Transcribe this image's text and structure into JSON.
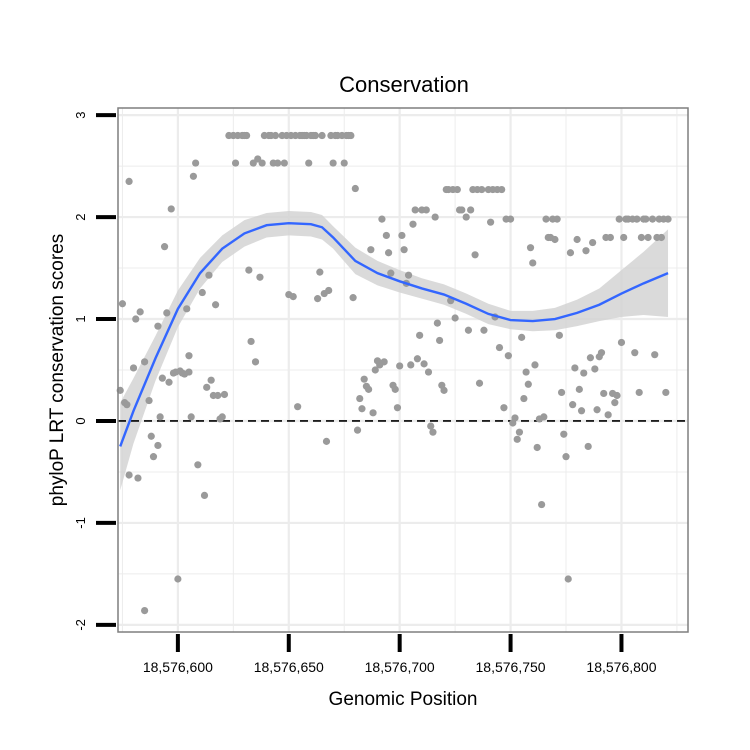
{
  "chart_data": {
    "type": "scatter",
    "title": "Conservation",
    "xlabel": "Genomic Position",
    "ylabel": "phyloP LRT conservation scores",
    "xlim": [
      18576573,
      18576830
    ],
    "ylim": [
      -2.07,
      3.07
    ],
    "x_ticks": [
      {
        "value": 18576600,
        "label": "18,576,600"
      },
      {
        "value": 18576650,
        "label": "18,576,650"
      },
      {
        "value": 18576700,
        "label": "18,576,700"
      },
      {
        "value": 18576750,
        "label": "18,576,750"
      },
      {
        "value": 18576800,
        "label": "18,576,800"
      }
    ],
    "y_ticks": [
      {
        "value": -2,
        "label": "-2"
      },
      {
        "value": -1,
        "label": "-1"
      },
      {
        "value": 0,
        "label": "0"
      },
      {
        "value": 1,
        "label": "1"
      },
      {
        "value": 2,
        "label": "2"
      },
      {
        "value": 3,
        "label": "3"
      }
    ],
    "grid": true,
    "reference_line": {
      "y": 0,
      "style": "dashed"
    },
    "colors": {
      "points": "#9a9a9a",
      "smooth_line": "#3366ff",
      "ribbon": "#d3d3d3",
      "panel": "#ffffff",
      "grid": "#ececec",
      "border": "#7f7f7f"
    },
    "series": [
      {
        "name": "scores",
        "points": [
          [
            18576574,
            0.3
          ],
          [
            18576575,
            1.15
          ],
          [
            18576576,
            0.18
          ],
          [
            18576577,
            0.16
          ],
          [
            18576578,
            2.35
          ],
          [
            18576578,
            -0.53
          ],
          [
            18576580,
            0.52
          ],
          [
            18576581,
            1.0
          ],
          [
            18576582,
            -0.56
          ],
          [
            18576583,
            1.07
          ],
          [
            18576585,
            -1.86
          ],
          [
            18576585,
            0.58
          ],
          [
            18576587,
            0.2
          ],
          [
            18576588,
            -0.15
          ],
          [
            18576589,
            -0.35
          ],
          [
            18576591,
            0.93
          ],
          [
            18576591,
            -0.24
          ],
          [
            18576592,
            0.04
          ],
          [
            18576593,
            0.42
          ],
          [
            18576594,
            1.71
          ],
          [
            18576595,
            1.06
          ],
          [
            18576596,
            0.38
          ],
          [
            18576597,
            2.08
          ],
          [
            18576598,
            0.47
          ],
          [
            18576599,
            0.48
          ],
          [
            18576600,
            -1.55
          ],
          [
            18576601,
            0.49
          ],
          [
            18576602,
            0.47
          ],
          [
            18576603,
            0.46
          ],
          [
            18576604,
            1.1
          ],
          [
            18576605,
            0.48
          ],
          [
            18576605,
            0.64
          ],
          [
            18576606,
            0.04
          ],
          [
            18576607,
            2.4
          ],
          [
            18576608,
            2.53
          ],
          [
            18576609,
            -0.43
          ],
          [
            18576611,
            1.26
          ],
          [
            18576612,
            -0.73
          ],
          [
            18576613,
            0.33
          ],
          [
            18576614,
            1.43
          ],
          [
            18576615,
            0.4
          ],
          [
            18576616,
            0.25
          ],
          [
            18576617,
            1.14
          ],
          [
            18576618,
            0.25
          ],
          [
            18576619,
            0.02
          ],
          [
            18576620,
            0.04
          ],
          [
            18576621,
            0.26
          ],
          [
            18576623,
            2.8
          ],
          [
            18576625,
            2.8
          ],
          [
            18576626,
            2.53
          ],
          [
            18576627,
            2.8
          ],
          [
            18576629,
            2.8
          ],
          [
            18576630,
            2.8
          ],
          [
            18576631,
            2.8
          ],
          [
            18576632,
            1.48
          ],
          [
            18576633,
            0.78
          ],
          [
            18576634,
            2.53
          ],
          [
            18576635,
            0.58
          ],
          [
            18576636,
            2.57
          ],
          [
            18576637,
            1.41
          ],
          [
            18576638,
            2.53
          ],
          [
            18576639,
            2.8
          ],
          [
            18576641,
            2.8
          ],
          [
            18576642,
            2.8
          ],
          [
            18576643,
            2.53
          ],
          [
            18576644,
            2.8
          ],
          [
            18576645,
            2.53
          ],
          [
            18576647,
            2.8
          ],
          [
            18576648,
            2.53
          ],
          [
            18576649,
            2.8
          ],
          [
            18576650,
            1.24
          ],
          [
            18576651,
            2.8
          ],
          [
            18576652,
            1.22
          ],
          [
            18576653,
            2.8
          ],
          [
            18576654,
            0.14
          ],
          [
            18576655,
            2.8
          ],
          [
            18576656,
            2.8
          ],
          [
            18576657,
            2.8
          ],
          [
            18576658,
            2.8
          ],
          [
            18576659,
            2.53
          ],
          [
            18576660,
            2.8
          ],
          [
            18576661,
            2.8
          ],
          [
            18576662,
            2.8
          ],
          [
            18576663,
            1.2
          ],
          [
            18576664,
            1.46
          ],
          [
            18576665,
            2.8
          ],
          [
            18576666,
            1.25
          ],
          [
            18576667,
            -0.2
          ],
          [
            18576668,
            1.28
          ],
          [
            18576669,
            2.8
          ],
          [
            18576670,
            2.53
          ],
          [
            18576671,
            2.8
          ],
          [
            18576672,
            2.8
          ],
          [
            18576674,
            2.8
          ],
          [
            18576675,
            2.53
          ],
          [
            18576676,
            2.8
          ],
          [
            18576677,
            2.8
          ],
          [
            18576678,
            2.8
          ],
          [
            18576679,
            1.21
          ],
          [
            18576680,
            2.28
          ],
          [
            18576681,
            -0.09
          ],
          [
            18576682,
            0.22
          ],
          [
            18576683,
            0.12
          ],
          [
            18576684,
            0.41
          ],
          [
            18576685,
            0.34
          ],
          [
            18576686,
            0.31
          ],
          [
            18576687,
            1.68
          ],
          [
            18576688,
            0.08
          ],
          [
            18576689,
            0.5
          ],
          [
            18576690,
            0.59
          ],
          [
            18576691,
            0.55
          ],
          [
            18576692,
            1.98
          ],
          [
            18576693,
            0.58
          ],
          [
            18576694,
            1.82
          ],
          [
            18576695,
            1.65
          ],
          [
            18576696,
            1.45
          ],
          [
            18576697,
            0.35
          ],
          [
            18576698,
            0.31
          ],
          [
            18576699,
            0.13
          ],
          [
            18576700,
            0.54
          ],
          [
            18576701,
            1.82
          ],
          [
            18576702,
            1.68
          ],
          [
            18576703,
            1.35
          ],
          [
            18576704,
            1.43
          ],
          [
            18576705,
            0.55
          ],
          [
            18576706,
            1.93
          ],
          [
            18576707,
            2.07
          ],
          [
            18576708,
            0.61
          ],
          [
            18576709,
            0.84
          ],
          [
            18576710,
            2.07
          ],
          [
            18576711,
            0.56
          ],
          [
            18576712,
            2.07
          ],
          [
            18576713,
            0.48
          ],
          [
            18576714,
            -0.05
          ],
          [
            18576715,
            -0.11
          ],
          [
            18576716,
            2.0
          ],
          [
            18576717,
            0.96
          ],
          [
            18576718,
            0.79
          ],
          [
            18576719,
            0.35
          ],
          [
            18576720,
            0.3
          ],
          [
            18576721,
            2.27
          ],
          [
            18576722,
            2.27
          ],
          [
            18576723,
            1.18
          ],
          [
            18576724,
            2.27
          ],
          [
            18576725,
            1.01
          ],
          [
            18576726,
            2.27
          ],
          [
            18576727,
            2.07
          ],
          [
            18576728,
            2.07
          ],
          [
            18576730,
            2.0
          ],
          [
            18576731,
            0.89
          ],
          [
            18576732,
            2.07
          ],
          [
            18576733,
            2.27
          ],
          [
            18576734,
            1.63
          ],
          [
            18576735,
            2.27
          ],
          [
            18576736,
            0.37
          ],
          [
            18576737,
            2.27
          ],
          [
            18576738,
            0.89
          ],
          [
            18576740,
            2.27
          ],
          [
            18576741,
            1.95
          ],
          [
            18576742,
            2.27
          ],
          [
            18576743,
            1.02
          ],
          [
            18576744,
            2.27
          ],
          [
            18576745,
            0.72
          ],
          [
            18576746,
            2.27
          ],
          [
            18576747,
            0.13
          ],
          [
            18576748,
            1.98
          ],
          [
            18576749,
            0.64
          ],
          [
            18576750,
            1.98
          ],
          [
            18576751,
            -0.02
          ],
          [
            18576752,
            0.03
          ],
          [
            18576753,
            -0.18
          ],
          [
            18576754,
            -0.11
          ],
          [
            18576755,
            0.82
          ],
          [
            18576756,
            0.22
          ],
          [
            18576757,
            0.48
          ],
          [
            18576758,
            0.36
          ],
          [
            18576759,
            1.7
          ],
          [
            18576760,
            1.55
          ],
          [
            18576761,
            0.55
          ],
          [
            18576762,
            -0.26
          ],
          [
            18576763,
            0.02
          ],
          [
            18576764,
            -0.82
          ],
          [
            18576765,
            0.04
          ],
          [
            18576766,
            1.98
          ],
          [
            18576767,
            1.8
          ],
          [
            18576768,
            1.8
          ],
          [
            18576769,
            1.98
          ],
          [
            18576770,
            1.78
          ],
          [
            18576771,
            1.98
          ],
          [
            18576772,
            0.84
          ],
          [
            18576773,
            0.28
          ],
          [
            18576774,
            -0.13
          ],
          [
            18576775,
            -0.35
          ],
          [
            18576776,
            -1.55
          ],
          [
            18576777,
            1.65
          ],
          [
            18576778,
            0.16
          ],
          [
            18576779,
            0.52
          ],
          [
            18576780,
            1.78
          ],
          [
            18576781,
            0.31
          ],
          [
            18576782,
            0.1
          ],
          [
            18576783,
            0.47
          ],
          [
            18576784,
            1.67
          ],
          [
            18576785,
            -0.25
          ],
          [
            18576786,
            0.62
          ],
          [
            18576787,
            1.75
          ],
          [
            18576788,
            0.51
          ],
          [
            18576789,
            0.11
          ],
          [
            18576790,
            0.63
          ],
          [
            18576791,
            0.67
          ],
          [
            18576792,
            0.27
          ],
          [
            18576793,
            1.8
          ],
          [
            18576794,
            0.06
          ],
          [
            18576795,
            1.8
          ],
          [
            18576796,
            0.27
          ],
          [
            18576797,
            0.18
          ],
          [
            18576798,
            0.25
          ],
          [
            18576799,
            1.98
          ],
          [
            18576800,
            0.77
          ],
          [
            18576801,
            1.8
          ],
          [
            18576802,
            1.98
          ],
          [
            18576803,
            1.98
          ],
          [
            18576805,
            1.98
          ],
          [
            18576806,
            0.67
          ],
          [
            18576807,
            1.98
          ],
          [
            18576808,
            0.28
          ],
          [
            18576809,
            1.8
          ],
          [
            18576810,
            1.98
          ],
          [
            18576811,
            1.98
          ],
          [
            18576812,
            1.8
          ],
          [
            18576814,
            1.98
          ],
          [
            18576815,
            0.65
          ],
          [
            18576816,
            1.8
          ],
          [
            18576817,
            1.98
          ],
          [
            18576818,
            1.8
          ],
          [
            18576819,
            1.98
          ],
          [
            18576820,
            0.28
          ],
          [
            18576821,
            1.98
          ]
        ]
      },
      {
        "name": "loess smooth",
        "points": [
          [
            18576574,
            -0.25
          ],
          [
            18576580,
            0.1
          ],
          [
            18576590,
            0.62
          ],
          [
            18576600,
            1.1
          ],
          [
            18576610,
            1.45
          ],
          [
            18576620,
            1.69
          ],
          [
            18576630,
            1.84
          ],
          [
            18576640,
            1.92
          ],
          [
            18576650,
            1.94
          ],
          [
            18576660,
            1.93
          ],
          [
            18576665,
            1.9
          ],
          [
            18576670,
            1.8
          ],
          [
            18576680,
            1.57
          ],
          [
            18576690,
            1.45
          ],
          [
            18576700,
            1.37
          ],
          [
            18576710,
            1.3
          ],
          [
            18576720,
            1.24
          ],
          [
            18576730,
            1.15
          ],
          [
            18576740,
            1.05
          ],
          [
            18576750,
            0.99
          ],
          [
            18576760,
            0.98
          ],
          [
            18576770,
            1.0
          ],
          [
            18576780,
            1.06
          ],
          [
            18576790,
            1.14
          ],
          [
            18576800,
            1.25
          ],
          [
            18576810,
            1.35
          ],
          [
            18576821,
            1.45
          ]
        ],
        "band_lower": [
          -0.68,
          -0.22,
          0.4,
          0.92,
          1.3,
          1.56,
          1.71,
          1.8,
          1.82,
          1.81,
          1.78,
          1.69,
          1.44,
          1.33,
          1.26,
          1.2,
          1.14,
          1.05,
          0.95,
          0.9,
          0.88,
          0.89,
          0.93,
          0.98,
          1.02,
          1.04,
          1.02
        ],
        "band_upper": [
          0.18,
          0.42,
          0.84,
          1.28,
          1.6,
          1.82,
          1.97,
          2.04,
          2.06,
          2.05,
          2.02,
          1.91,
          1.7,
          1.57,
          1.48,
          1.4,
          1.34,
          1.25,
          1.15,
          1.08,
          1.08,
          1.11,
          1.19,
          1.3,
          1.48,
          1.66,
          1.88
        ]
      }
    ]
  }
}
